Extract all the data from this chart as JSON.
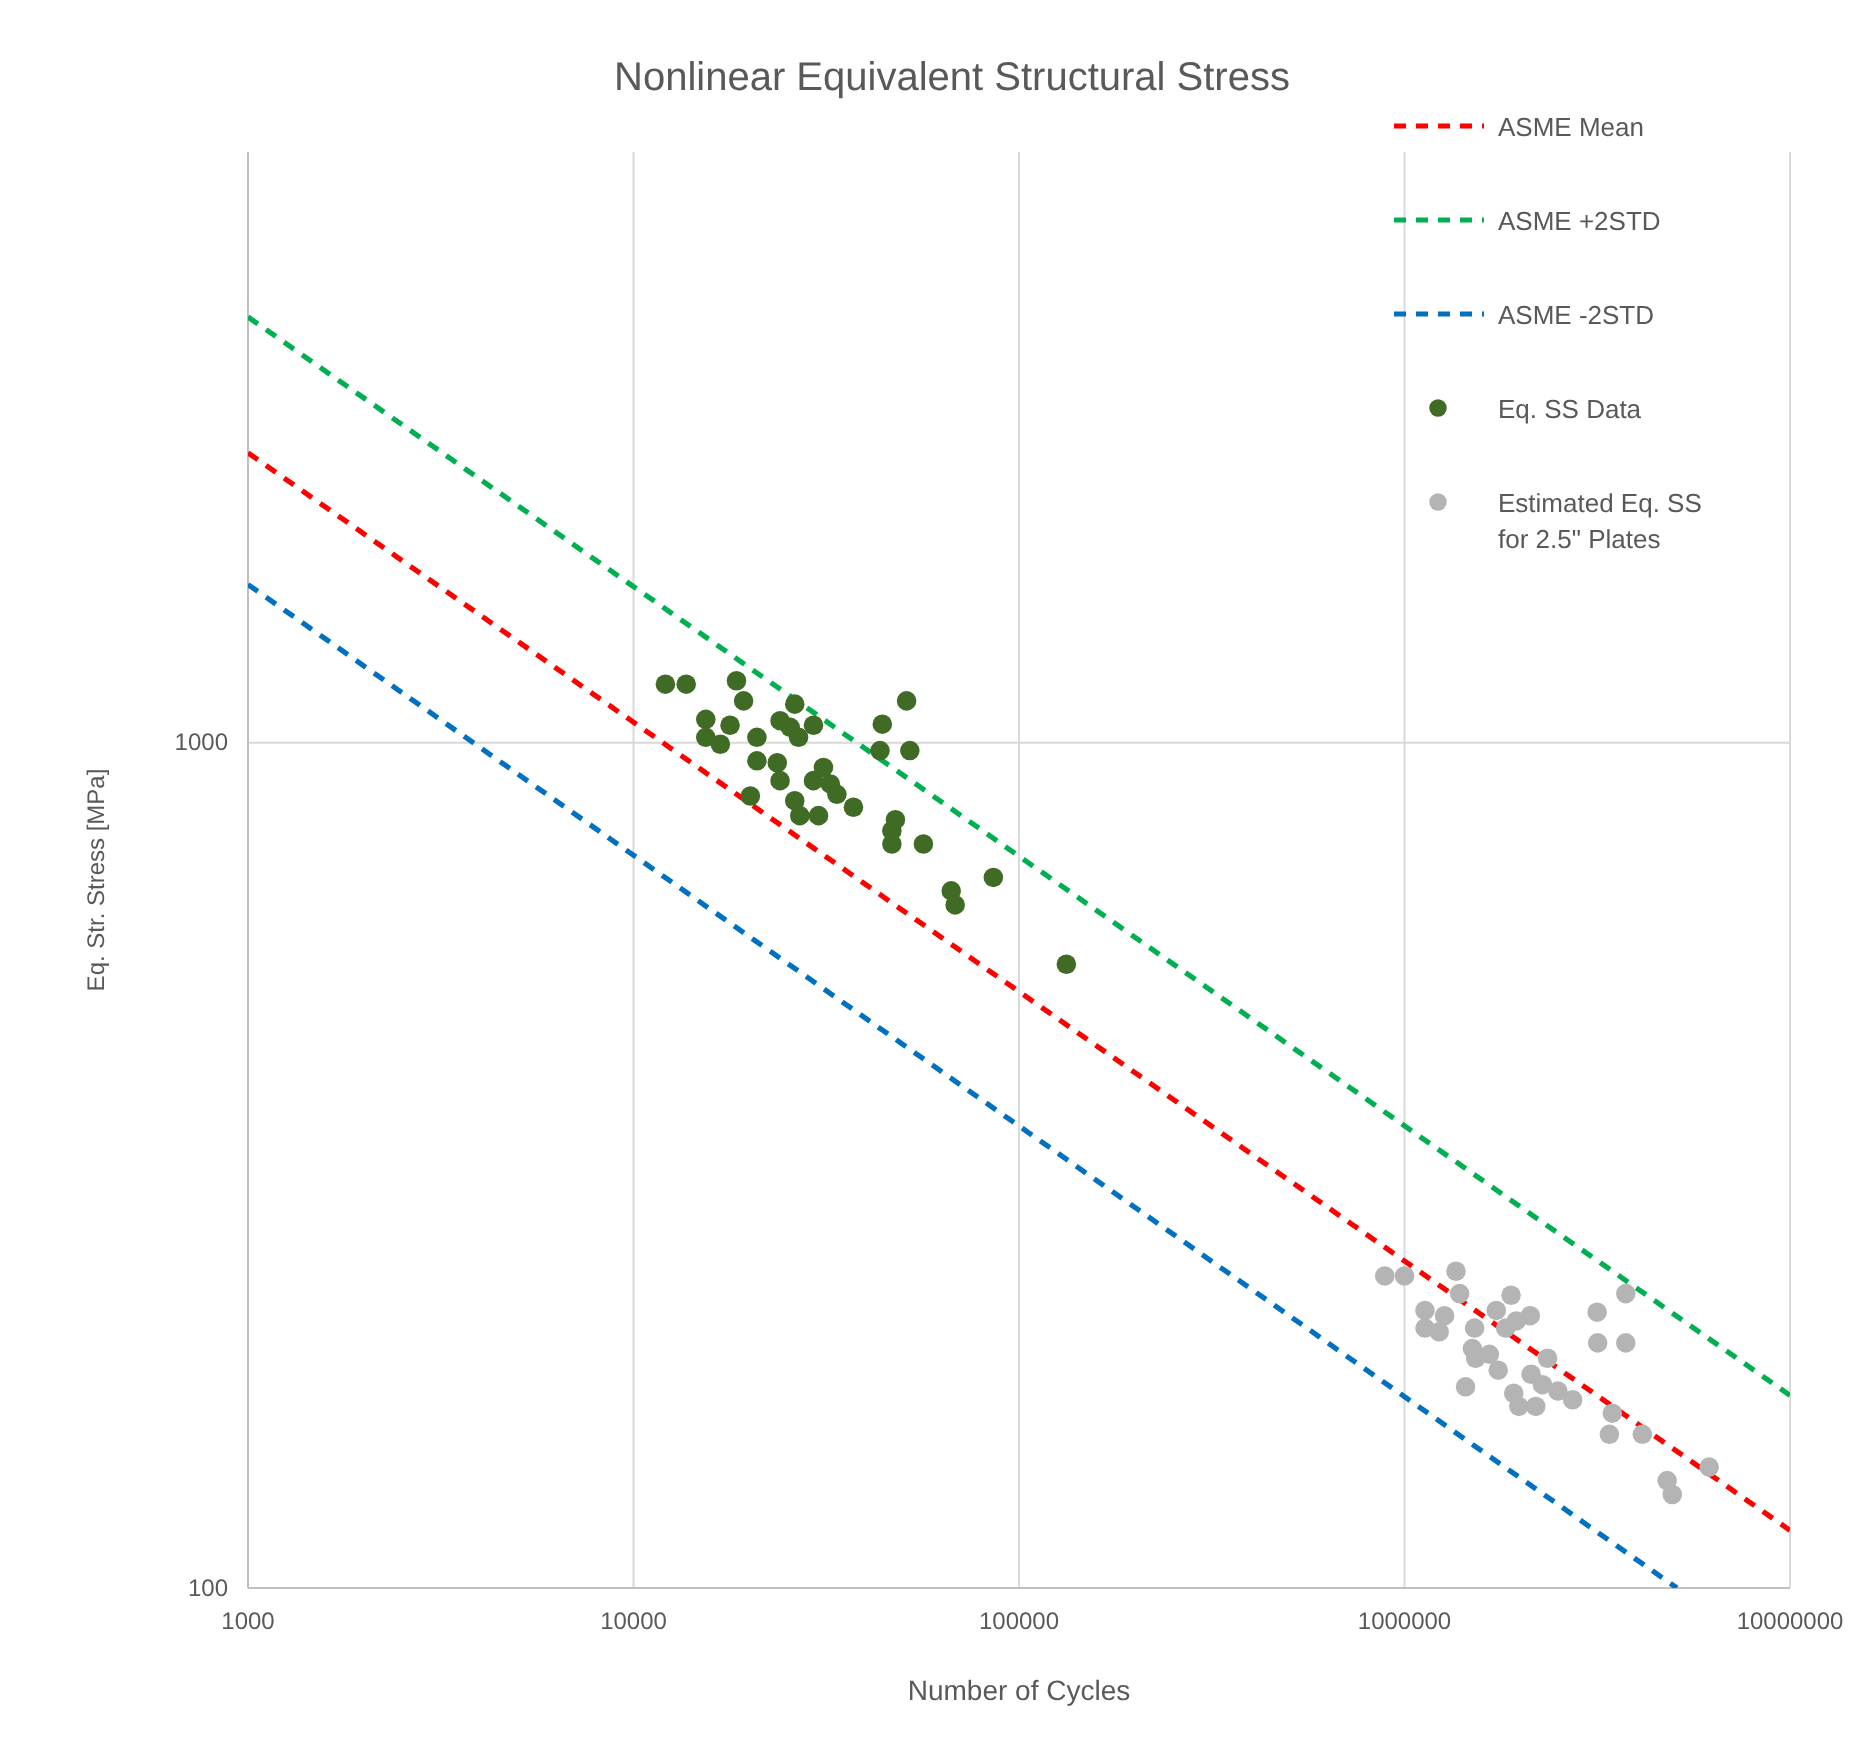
{
  "chart_data": {
    "type": "scatter",
    "title": "Nonlinear Equivalent Structural Stress",
    "xlabel": "Number of Cycles",
    "ylabel": "Eq. Str. Stress [MPa]",
    "log": "xy",
    "grid": true,
    "legend": "top right",
    "xlim": [
      1000,
      10000000
    ],
    "xticks": [
      1000,
      10000,
      100000,
      1000000,
      10000000
    ],
    "ylim": [
      100,
      5000
    ],
    "yticks": [
      100,
      1000
    ],
    "series": [
      {
        "name": "ASME Mean",
        "type": "line",
        "line_style": "dashed",
        "color": "#ff0000",
        "x": [
          1000,
          10000000
        ],
        "values": [
          2203,
          117
        ]
      },
      {
        "name": "ASME +2STD",
        "type": "line",
        "line_style": "dashed",
        "color": "#00b050",
        "x": [
          1000,
          10000000
        ],
        "values": [
          3190,
          169
        ]
      },
      {
        "name": "ASME -2STD",
        "type": "line",
        "line_style": "dashed",
        "color": "#0070c0",
        "x": [
          1000,
          5090000
        ],
        "values": [
          1539,
          100
        ]
      },
      {
        "name": "Eq. SS Data",
        "marker": "circle",
        "color": "#3f6b24",
        "x": [
          12100,
          13700,
          18500,
          19300,
          26200,
          51100,
          15400,
          17800,
          15400,
          16800,
          20900,
          24000,
          25500,
          26800,
          29300,
          44200,
          43600,
          52100,
          20900,
          23600,
          24000,
          20100,
          26200,
          27000,
          30200,
          29300,
          31100,
          32400,
          33700,
          37200,
          47800,
          46800,
          46800,
          56500,
          66700,
          68300,
          85800,
          132700
        ],
        "values": [
          1173,
          1173,
          1184,
          1121,
          1111,
          1121,
          1066,
          1049,
          1015,
          996,
          1015,
          1062,
          1043,
          1015,
          1049,
          1052,
          979,
          979,
          952,
          947,
          902,
          865,
          854,
          820,
          820,
          902,
          935,
          894,
          869,
          839,
          811,
          787,
          759,
          759,
          668,
          643,
          693,
          547
        ]
      },
      {
        "name": "Estimated Eq. SS for 2.5\" Plates",
        "marker": "circle",
        "color": "#b4b4b4",
        "x": [
          889000,
          1000000,
          1360000,
          1390000,
          1130000,
          1270000,
          1130000,
          1230000,
          1520000,
          1890000,
          1730000,
          1950000,
          2120000,
          1830000,
          1500000,
          1530000,
          1660000,
          1750000,
          1440000,
          1920000,
          1980000,
          2190000,
          2350000,
          2130000,
          2280000,
          2500000,
          2730000,
          3160000,
          3170000,
          3750000,
          3750000,
          3460000,
          3400000,
          4140000,
          4800000,
          4950000,
          6170000
        ],
        "values": [
          234,
          234,
          237,
          223,
          213,
          210,
          203,
          201,
          203,
          222,
          213,
          207,
          210,
          203,
          192,
          187,
          189,
          181,
          173,
          170,
          164,
          164,
          187,
          179,
          174,
          171,
          167,
          212,
          195,
          195,
          223,
          161,
          152,
          152,
          134,
          129,
          139
        ]
      }
    ]
  }
}
